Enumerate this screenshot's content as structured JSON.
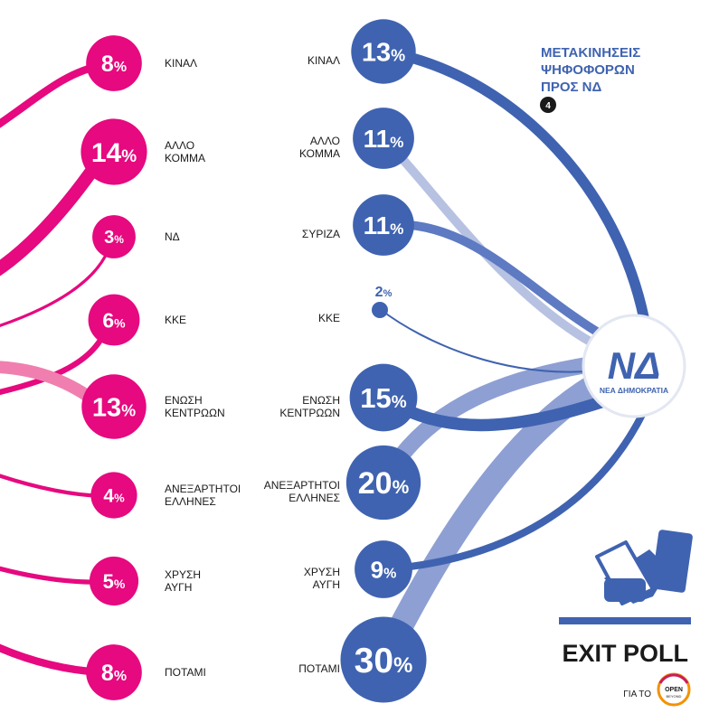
{
  "chart_data": {
    "type": "flow",
    "title": [
      "ΜΕΤΑΚΙΝΗΣΕΙΣ",
      "ΨΗΦΟΦΟΡΩΝ",
      "ΠΡΟΣ ΝΔ"
    ],
    "badge": "4",
    "pct_symbol": "%",
    "target": {
      "line1": "ΝΔ",
      "line2": "ΝΕΑ ΔΗΜΟΚΡΑΤΙΑ"
    },
    "left_series": [
      {
        "label": [
          "ΚΙΝΑΛ"
        ],
        "value": 8
      },
      {
        "label": [
          "ΑΛΛΟ",
          "ΚΟΜΜΑ"
        ],
        "value": 14
      },
      {
        "label": [
          "ΝΔ"
        ],
        "value": 3
      },
      {
        "label": [
          "ΚΚΕ"
        ],
        "value": 6
      },
      {
        "label": [
          "ΕΝΩΣΗ",
          "ΚΕΝΤΡΩΩΝ"
        ],
        "value": 13
      },
      {
        "label": [
          "ΑΝΕΞΑΡΤΗΤΟΙ",
          "ΕΛΛΗΝΕΣ"
        ],
        "value": 4
      },
      {
        "label": [
          "ΧΡΥΣΗ",
          "ΑΥΓΗ"
        ],
        "value": 5
      },
      {
        "label": [
          "ΠΟΤΑΜΙ"
        ],
        "value": 8
      }
    ],
    "right_series": [
      {
        "label": [
          "ΚΙΝΑΛ"
        ],
        "value": 13
      },
      {
        "label": [
          "ΑΛΛΟ",
          "ΚΟΜΜΑ"
        ],
        "value": 11
      },
      {
        "label": [
          "ΣΥΡΙΖΑ"
        ],
        "value": 11
      },
      {
        "label": [
          "ΚΚΕ"
        ],
        "value": 2
      },
      {
        "label": [
          "ΕΝΩΣΗ",
          "ΚΕΝΤΡΩΩΝ"
        ],
        "value": 15
      },
      {
        "label": [
          "ΑΝΕΞΑΡΤΗΤΟΙ",
          "ΕΛΛΗΝΕΣ"
        ],
        "value": 20
      },
      {
        "label": [
          "ΧΡΥΣΗ",
          "ΑΥΓΗ"
        ],
        "value": 9
      },
      {
        "label": [
          "ΠΟΤΑΜΙ"
        ],
        "value": 30
      }
    ],
    "colors": {
      "left": "#e6097f",
      "left_light": "#f07fb0",
      "right": "#3f63b0",
      "right_light": "#b7c2e2",
      "right_mid": "#8e9fd3"
    }
  },
  "footer": {
    "exit_poll": "EXIT POLL",
    "sponsor_prefix": "ΓΙΑ ΤΟ",
    "sponsor_logo": [
      "OPEN",
      "BEYOND"
    ]
  }
}
